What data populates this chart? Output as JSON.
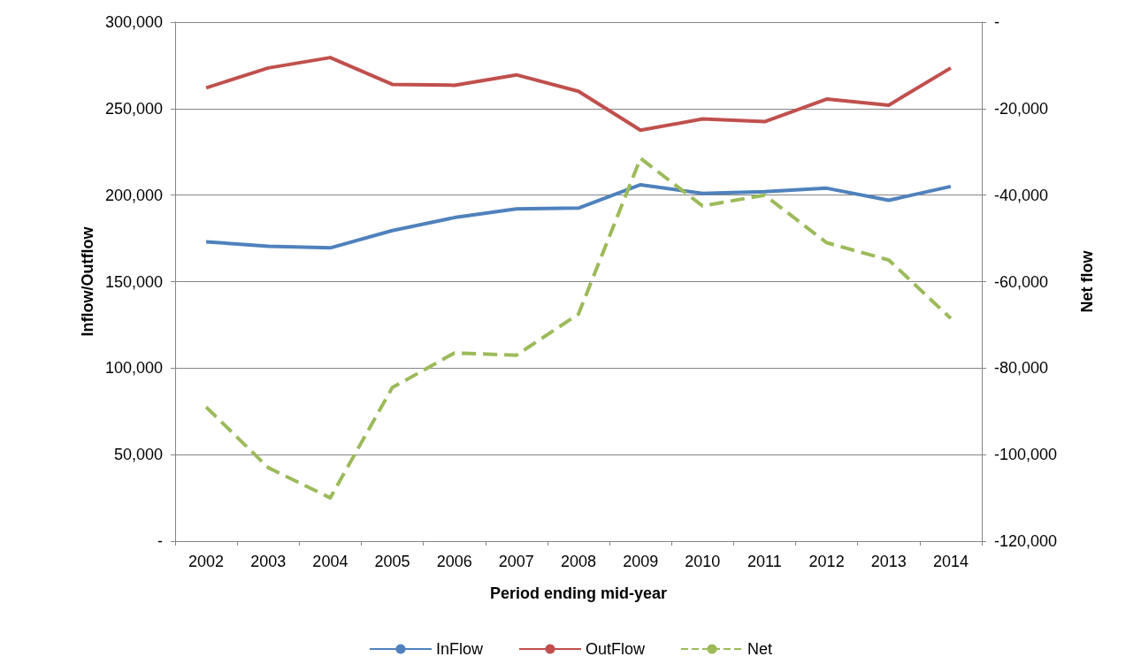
{
  "chart_data": {
    "type": "line",
    "xlabel": "Period ending mid-year",
    "ylabel": "Inflow/Outflow",
    "y2label": "Net flow",
    "categories": [
      "2002",
      "2003",
      "2004",
      "2005",
      "2006",
      "2007",
      "2008",
      "2009",
      "2010",
      "2011",
      "2012",
      "2013",
      "2014"
    ],
    "series": [
      {
        "name": "InFlow",
        "color": "#4f81bd",
        "values": [
          173000,
          170500,
          169500,
          179500,
          187000,
          192000,
          192500,
          206000,
          201000,
          202000,
          204000,
          197000,
          205000
        ]
      },
      {
        "name": "OutFlow",
        "color": "#c0504d",
        "values": [
          262000,
          273500,
          279500,
          264000,
          263500,
          269500,
          260000,
          237500,
          244000,
          242500,
          255500,
          252000,
          273500
        ]
      },
      {
        "name": "Net",
        "color": "#9bbb59",
        "axis": "y2",
        "line_style": "dashed",
        "values": [
          -89000,
          -103000,
          -110000,
          -84500,
          -76500,
          -77000,
          -67500,
          -31500,
          -42500,
          -40000,
          -51000,
          -55000,
          -68500
        ]
      }
    ],
    "ylim": [
      0,
      300000
    ],
    "yticks": [
      {
        "value": 0,
        "label": "-"
      },
      {
        "value": 50000,
        "label": "50,000"
      },
      {
        "value": 100000,
        "label": "100,000"
      },
      {
        "value": 150000,
        "label": "150,000"
      },
      {
        "value": 200000,
        "label": "200,000"
      },
      {
        "value": 250000,
        "label": "250,000"
      },
      {
        "value": 300000,
        "label": "300,000"
      }
    ],
    "y2lim": [
      -120000,
      0
    ],
    "y2ticks": [
      {
        "value": -120000,
        "label": "-120,000"
      },
      {
        "value": -100000,
        "label": "-100,000"
      },
      {
        "value": -80000,
        "label": "-80,000"
      },
      {
        "value": -60000,
        "label": "-60,000"
      },
      {
        "value": -40000,
        "label": "-40,000"
      },
      {
        "value": -20000,
        "label": "-20,000"
      },
      {
        "value": 0,
        "label": "-"
      }
    ],
    "grid": "y",
    "legend": "bottom",
    "marker": "none",
    "line_style": "solid"
  }
}
